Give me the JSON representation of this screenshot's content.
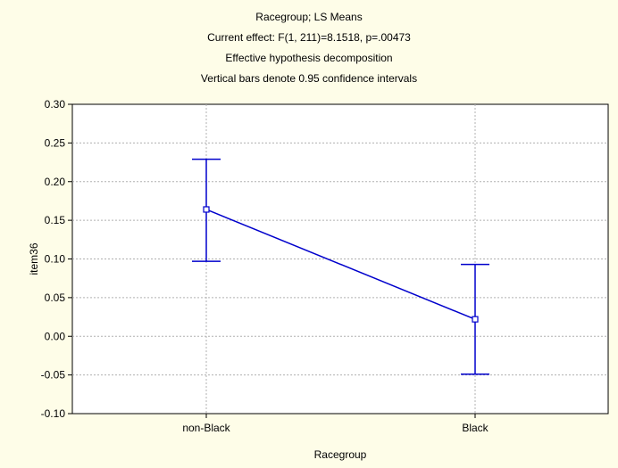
{
  "chart_data": {
    "type": "line",
    "title_lines": [
      "Racegroup; LS Means",
      "Current effect: F(1, 211)=8.1518, p=.00473",
      "Effective hypothesis decomposition",
      "Vertical bars denote 0.95 confidence intervals"
    ],
    "xlabel": "Racegroup",
    "ylabel": "item36",
    "categories": [
      "non-Black",
      "Black"
    ],
    "series": [
      {
        "values": [
          0.164,
          0.022
        ],
        "ci_lower": [
          0.097,
          -0.049
        ],
        "ci_upper": [
          0.229,
          0.093
        ]
      }
    ],
    "ylim": [
      -0.1,
      0.3
    ],
    "yticks": [
      "-0.10",
      "-0.05",
      "0.00",
      "0.05",
      "0.10",
      "0.15",
      "0.20",
      "0.25",
      "0.30"
    ],
    "grid": true,
    "colors": {
      "series": "#0000cc",
      "background": "#fefde8",
      "plot_bg": "#ffffff",
      "grid": "#b0b0b0"
    }
  }
}
